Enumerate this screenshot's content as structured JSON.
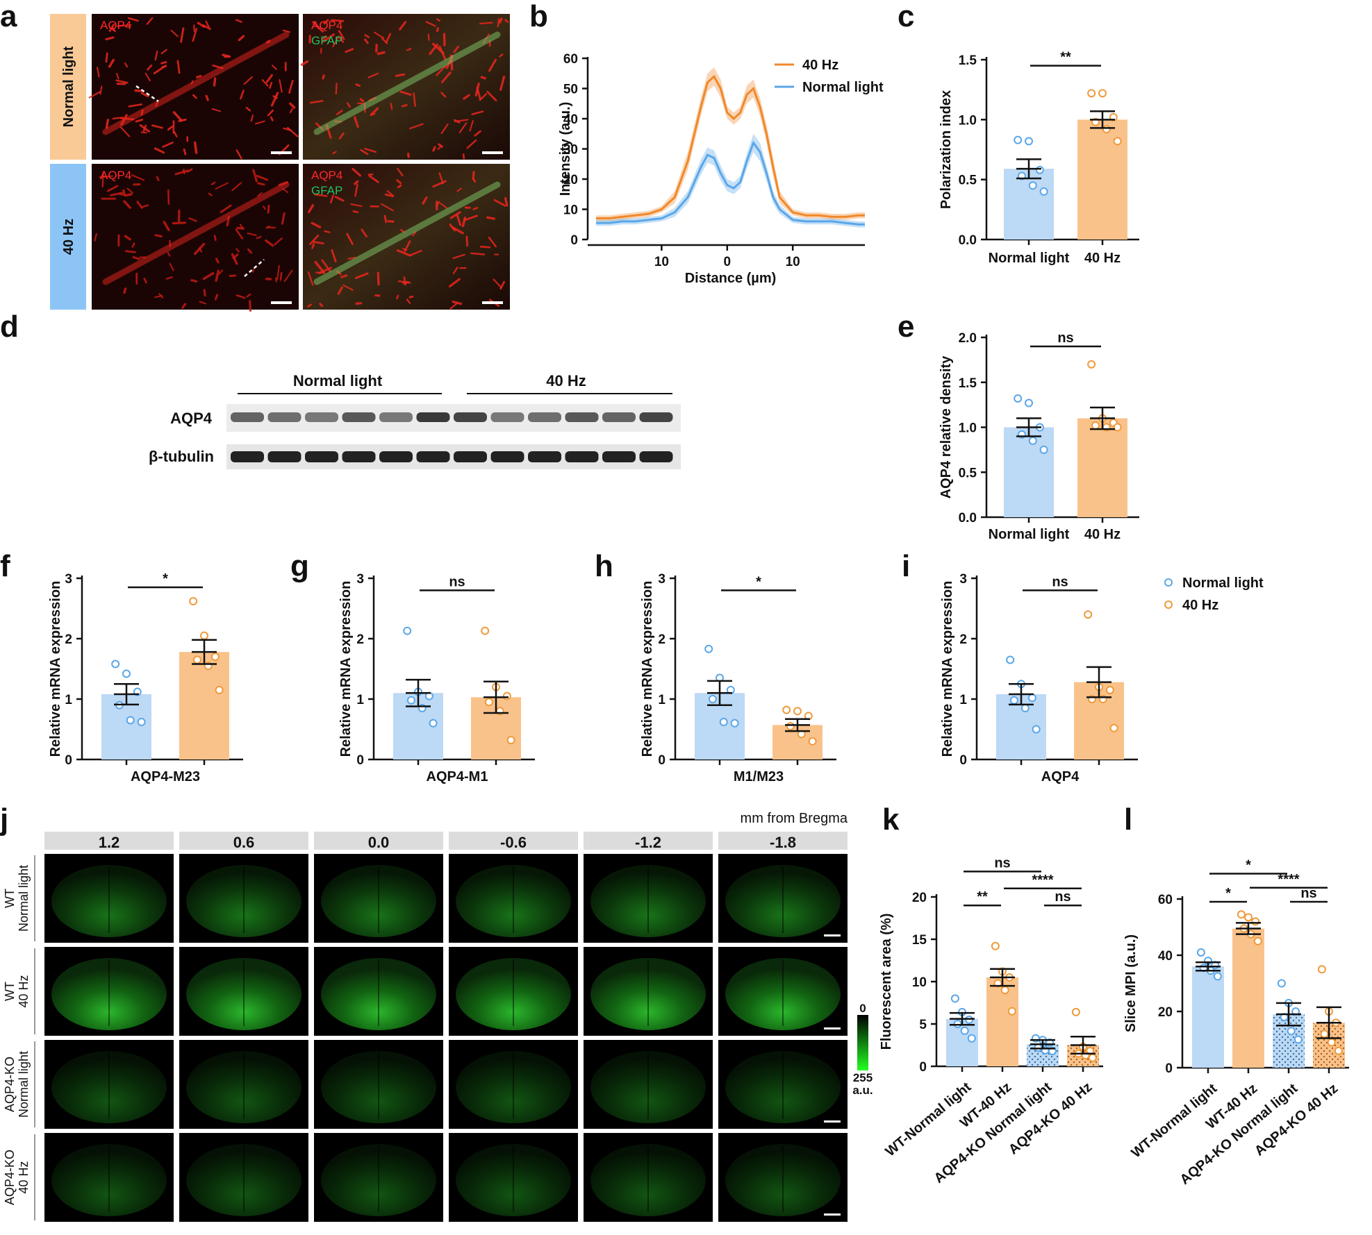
{
  "panels": {
    "a": {
      "letter": "a",
      "rows": [
        "Normal light",
        "40 Hz"
      ],
      "channel_labels": {
        "aqp4": "AQP4",
        "gfap": "GFAP"
      },
      "colors": {
        "normal": "#f9c996",
        "hz40": "#8cc4f5",
        "aqp4": "#ff2a2a",
        "gfap": "#22c060"
      }
    },
    "b": {
      "letter": "b"
    },
    "c": {
      "letter": "c"
    },
    "d": {
      "letter": "d",
      "groups": [
        "Normal light",
        "40 Hz"
      ],
      "rows": [
        "AQP4",
        "β-tubulin"
      ]
    },
    "e": {
      "letter": "e"
    },
    "f": {
      "letter": "f"
    },
    "g": {
      "letter": "g"
    },
    "h": {
      "letter": "h"
    },
    "i": {
      "letter": "i"
    },
    "j": {
      "letter": "j",
      "header": "mm from Bregma",
      "columns": [
        "1.2",
        "0.6",
        "0.0",
        "-0.6",
        "-1.2",
        "-1.8"
      ],
      "rows": [
        [
          "WT",
          "Normal light"
        ],
        [
          "WT",
          "40 Hz"
        ],
        [
          "AQP4-KO",
          "Normal light"
        ],
        [
          "AQP4-KO",
          "40 Hz"
        ]
      ],
      "scale": {
        "top": "0",
        "bottom": "255",
        "unit": "a.u."
      }
    },
    "k": {
      "letter": "k"
    },
    "l": {
      "letter": "l"
    }
  },
  "colors": {
    "normal_light": "#bcd9f5",
    "hz40": "#f9c28a",
    "normal_dot": "#5aa6e8",
    "hz40_dot": "#ef9a3a",
    "line_orange": "#f0882a",
    "line_blue": "#5aa6e8"
  },
  "chart_data": [
    {
      "panel": "b",
      "type": "line",
      "xlabel": "Distance (µm)",
      "ylabel": "Intensity (a.u.)",
      "x_ticks": [
        "10",
        "0",
        "10"
      ],
      "x_tick_values": [
        -10,
        0,
        10
      ],
      "y_ticks": [
        "0",
        "10",
        "20",
        "30",
        "40",
        "50",
        "60"
      ],
      "ylim": [
        0,
        60
      ],
      "xlim": [
        -20,
        21
      ],
      "legend": "top-right",
      "x": [
        -20,
        -18,
        -16,
        -14,
        -12,
        -10,
        -8,
        -6,
        -4,
        -3,
        -2,
        -1,
        0,
        1,
        2,
        3,
        4,
        5,
        6,
        7,
        8,
        10,
        12,
        14,
        16,
        18,
        20,
        21
      ],
      "series": [
        {
          "name": "40 Hz",
          "color": "#f0882a",
          "values": [
            7,
            7,
            7.5,
            8,
            8.5,
            10,
            14,
            26,
            44,
            52,
            54,
            50,
            42,
            40,
            42,
            48,
            50,
            44,
            35,
            24,
            14,
            9,
            8,
            8,
            7.5,
            7.5,
            8,
            8
          ],
          "sem": [
            1,
            1,
            1,
            1,
            1,
            1,
            2,
            3,
            3,
            3,
            3,
            3,
            2,
            2,
            2,
            3,
            3,
            3,
            3,
            3,
            2,
            1,
            1,
            1,
            1,
            1,
            1,
            1
          ]
        },
        {
          "name": "Normal light",
          "color": "#5aa6e8",
          "values": [
            5.5,
            5.5,
            6,
            6,
            6.5,
            7,
            9,
            14,
            24,
            28,
            27,
            22,
            18,
            17,
            19,
            26,
            32,
            29,
            22,
            14,
            10,
            6.5,
            6,
            6,
            6,
            5.5,
            5,
            5
          ],
          "sem": [
            1,
            1,
            1,
            1,
            1,
            1,
            1.5,
            2,
            2.5,
            2.5,
            2.5,
            2.5,
            2,
            2,
            2,
            2.5,
            3,
            3,
            2.5,
            2,
            1.5,
            1,
            1,
            1,
            1,
            1,
            1,
            1
          ]
        }
      ]
    },
    {
      "panel": "c",
      "type": "bar",
      "ylabel": "Polarization index",
      "categories": [
        "Normal light",
        "40 Hz"
      ],
      "y_ticks": [
        "0.0",
        "0.5",
        "1.0",
        "1.5"
      ],
      "ylim": [
        0,
        1.5
      ],
      "values": [
        0.59,
        1.0
      ],
      "sem": [
        0.08,
        0.07
      ],
      "points": [
        [
          0.83,
          0.82,
          0.58,
          0.53,
          0.45,
          0.4
        ],
        [
          1.22,
          1.22,
          1.02,
          0.98,
          0.92,
          0.82
        ]
      ],
      "significance": [
        {
          "from": 0,
          "to": 1,
          "label": "**",
          "y": 1.45
        }
      ]
    },
    {
      "panel": "e",
      "type": "bar",
      "ylabel": "AQP4 relative density",
      "categories": [
        "Normal light",
        "40 Hz"
      ],
      "y_ticks": [
        "0.0",
        "0.5",
        "1.0",
        "1.5",
        "2.0"
      ],
      "ylim": [
        0,
        2.0
      ],
      "values": [
        1.0,
        1.1
      ],
      "sem": [
        0.1,
        0.12
      ],
      "points": [
        [
          1.32,
          1.27,
          1.0,
          0.92,
          0.85,
          0.75
        ],
        [
          1.7,
          1.1,
          1.05,
          1.02,
          1.0,
          1.0
        ]
      ],
      "significance": [
        {
          "from": 0,
          "to": 1,
          "label": "ns",
          "y": 1.9
        }
      ]
    },
    {
      "panel": "f",
      "type": "bar",
      "ylabel": "Relative mRNA expression",
      "xlabel": "AQP4-M23",
      "categories": [
        "Normal light",
        "40 Hz"
      ],
      "y_ticks": [
        "0",
        "1",
        "2",
        "3"
      ],
      "ylim": [
        0,
        3
      ],
      "values": [
        1.08,
        1.78
      ],
      "sem": [
        0.17,
        0.2
      ],
      "points": [
        [
          1.58,
          1.42,
          1.12,
          0.9,
          0.65,
          0.62
        ],
        [
          2.62,
          2.05,
          1.7,
          1.65,
          1.55,
          1.15
        ]
      ],
      "significance": [
        {
          "from": 0,
          "to": 1,
          "label": "*",
          "y": 2.85
        }
      ]
    },
    {
      "panel": "g",
      "type": "bar",
      "ylabel": "Relative mRNA expression",
      "xlabel": "AQP4-M1",
      "categories": [
        "Normal light",
        "40 Hz"
      ],
      "y_ticks": [
        "0",
        "1",
        "2",
        "3"
      ],
      "ylim": [
        0,
        3
      ],
      "values": [
        1.1,
        1.03
      ],
      "sem": [
        0.22,
        0.26
      ],
      "points": [
        [
          2.13,
          1.12,
          1.05,
          0.98,
          0.85,
          0.6
        ],
        [
          2.13,
          1.2,
          1.05,
          0.95,
          0.8,
          0.32
        ]
      ],
      "significance": [
        {
          "from": 0,
          "to": 1,
          "label": "ns",
          "y": 2.8
        }
      ]
    },
    {
      "panel": "h",
      "type": "bar",
      "ylabel": "Relative mRNA expression",
      "xlabel": "M1/M23",
      "categories": [
        "Normal light",
        "40 Hz"
      ],
      "y_ticks": [
        "0",
        "1",
        "2",
        "3"
      ],
      "ylim": [
        0,
        3
      ],
      "values": [
        1.1,
        0.57
      ],
      "sem": [
        0.2,
        0.1
      ],
      "points": [
        [
          1.83,
          1.35,
          1.15,
          1.0,
          0.62,
          0.6
        ],
        [
          0.82,
          0.8,
          0.72,
          0.55,
          0.42,
          0.3
        ]
      ],
      "significance": [
        {
          "from": 0,
          "to": 1,
          "label": "*",
          "y": 2.8
        }
      ]
    },
    {
      "panel": "i",
      "type": "bar",
      "ylabel": "Relative mRNA expression",
      "xlabel": "AQP4",
      "categories": [
        "Normal light",
        "40 Hz"
      ],
      "y_ticks": [
        "0",
        "1",
        "2",
        "3"
      ],
      "ylim": [
        0,
        3
      ],
      "values": [
        1.08,
        1.28
      ],
      "sem": [
        0.17,
        0.25
      ],
      "points": [
        [
          1.65,
          1.25,
          1.02,
          0.98,
          0.85,
          0.5
        ],
        [
          2.4,
          1.2,
          1.15,
          1.0,
          1.0,
          0.52
        ]
      ],
      "significance": [
        {
          "from": 0,
          "to": 1,
          "label": "ns",
          "y": 2.8
        }
      ],
      "legend": "right",
      "legend_entries": [
        "Normal light",
        "40 Hz"
      ]
    },
    {
      "panel": "k",
      "type": "bar",
      "ylabel": "Fluorescent area (%)",
      "categories": [
        "WT-Normal light",
        "WT-40 Hz",
        "AQP4-KO Normal light",
        "AQP4-KO 40 Hz"
      ],
      "y_ticks": [
        "0",
        "5",
        "10",
        "15",
        "20"
      ],
      "ylim": [
        0,
        20
      ],
      "values": [
        5.6,
        10.5,
        2.6,
        2.5
      ],
      "sem": [
        0.7,
        1.0,
        0.5,
        1.0
      ],
      "points": [
        [
          8.0,
          6.4,
          5.5,
          5.0,
          4.2,
          3.3
        ],
        [
          14.2,
          11.2,
          10.5,
          9.8,
          9.0,
          6.5
        ],
        [
          3.3,
          3.1,
          2.8,
          2.2,
          1.9,
          1.8
        ],
        [
          6.4,
          2.3,
          1.8,
          1.5,
          1.3,
          1.0
        ]
      ],
      "hatched": [
        false,
        false,
        true,
        true
      ],
      "significance": [
        {
          "from": 0,
          "to": 2,
          "label": "ns",
          "y": 23
        },
        {
          "from": 1,
          "to": 3,
          "label": "****",
          "y": 21
        },
        {
          "from": 0,
          "to": 1,
          "label": "**",
          "y": 19
        },
        {
          "from": 2,
          "to": 3,
          "label": "ns",
          "y": 19
        }
      ]
    },
    {
      "panel": "l",
      "type": "bar",
      "ylabel": "Slice MPI (a.u.)",
      "categories": [
        "WT-Normal light",
        "WT-40 Hz",
        "AQP4-KO Normal light",
        "AQP4-KO 40 Hz"
      ],
      "y_ticks": [
        "0",
        "20",
        "40",
        "60"
      ],
      "ylim": [
        0,
        60
      ],
      "values": [
        36,
        49.5,
        19,
        16
      ],
      "sem": [
        1.5,
        2.0,
        4.0,
        5.5
      ],
      "points": [
        [
          41,
          38,
          36.5,
          35.5,
          34.5,
          32.5
        ],
        [
          54.5,
          53.5,
          52,
          49.5,
          47.5,
          45
        ],
        [
          30,
          23,
          20,
          18,
          13,
          10
        ],
        [
          35,
          20,
          16,
          12,
          9,
          6
        ]
      ],
      "hatched": [
        false,
        false,
        true,
        true
      ],
      "significance": [
        {
          "from": 0,
          "to": 2,
          "label": "*",
          "y": 69
        },
        {
          "from": 1,
          "to": 3,
          "label": "****",
          "y": 64
        },
        {
          "from": 0,
          "to": 1,
          "label": "*",
          "y": 59
        },
        {
          "from": 2,
          "to": 3,
          "label": "ns",
          "y": 59
        }
      ]
    }
  ]
}
